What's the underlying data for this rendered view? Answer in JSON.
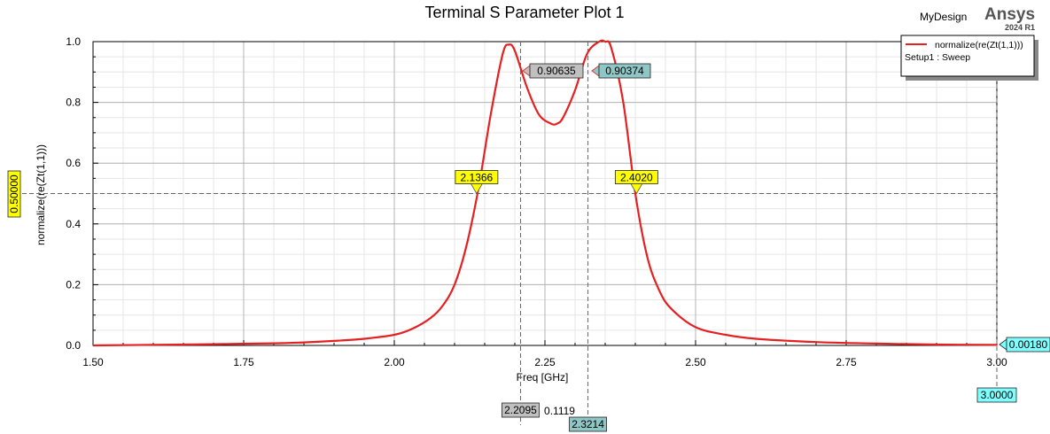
{
  "header": {
    "title": "Terminal S Parameter Plot 1",
    "design": "MyDesign",
    "brand": "Ansys",
    "version": "2024 R1"
  },
  "legend": {
    "entry": "normalize(re(Zt(1,1)))",
    "setup": "Setup1 : Sweep",
    "line_color": "#e52020"
  },
  "chart_data": {
    "type": "line",
    "title": "Terminal S Parameter Plot 1",
    "xlabel": "Freq [GHz]",
    "ylabel": "normalize(re(Zt(1,1)))",
    "xlim": [
      1.5,
      3.0
    ],
    "ylim": [
      0.0,
      1.0
    ],
    "x_ticks": [
      "1.50",
      "1.75",
      "2.00",
      "2.25",
      "2.50",
      "2.75",
      "3.00"
    ],
    "y_ticks": [
      "0.0",
      "0.2",
      "0.4",
      "0.6",
      "0.8",
      "1.0"
    ],
    "grid": true,
    "legend_position": "top-right",
    "series": [
      {
        "name": "normalize(re(Zt(1,1)))",
        "color": "#e52020",
        "x": [
          1.5,
          1.6,
          1.7,
          1.8,
          1.85,
          1.9,
          1.95,
          2.0,
          2.03,
          2.06,
          2.08,
          2.1,
          2.12,
          2.14,
          2.16,
          2.18,
          2.19,
          2.2,
          2.22,
          2.24,
          2.26,
          2.27,
          2.28,
          2.3,
          2.32,
          2.34,
          2.35,
          2.36,
          2.38,
          2.4,
          2.42,
          2.44,
          2.46,
          2.5,
          2.55,
          2.6,
          2.7,
          2.8,
          2.9,
          3.0
        ],
        "y": [
          0.0,
          0.002,
          0.004,
          0.007,
          0.01,
          0.015,
          0.022,
          0.035,
          0.055,
          0.09,
          0.13,
          0.2,
          0.33,
          0.52,
          0.76,
          0.96,
          0.99,
          0.97,
          0.85,
          0.76,
          0.73,
          0.73,
          0.75,
          0.84,
          0.96,
          1.0,
          1.0,
          0.98,
          0.8,
          0.5,
          0.29,
          0.18,
          0.12,
          0.06,
          0.035,
          0.022,
          0.011,
          0.006,
          0.003,
          0.0018
        ]
      }
    ],
    "markers": [
      {
        "label": "2.1366",
        "x": 2.1366,
        "y": 0.5
      },
      {
        "label": "2.4020",
        "x": 2.402,
        "y": 0.5
      }
    ],
    "cursors": {
      "vertical": [
        {
          "x": 2.2095,
          "label": "2.2095",
          "value_label": "0.90635"
        },
        {
          "x": 2.3214,
          "label": "2.3214",
          "value_label": "0.90374"
        }
      ],
      "delta_label": "0.1119",
      "horizontal": {
        "y": 0.5,
        "label": "0.50000"
      },
      "end_x": {
        "x": 3.0,
        "label": "3.0000"
      },
      "end_value_label": "0.00180"
    }
  }
}
